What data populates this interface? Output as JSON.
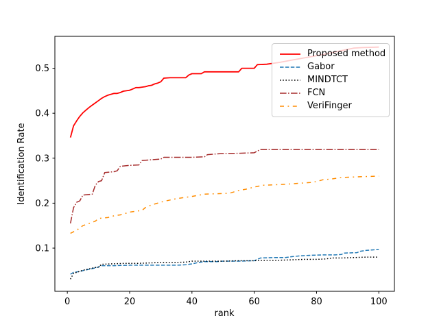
{
  "figure": {
    "background": "#ffffff"
  },
  "chart_data": {
    "type": "line",
    "title": "",
    "xlabel": "rank",
    "ylabel": "Identification Rate",
    "xlim": [
      -4,
      105
    ],
    "ylim": [
      0.004,
      0.571
    ],
    "xticks": [
      0,
      20,
      40,
      60,
      80,
      100
    ],
    "xtick_labels": [
      "0",
      "20",
      "40",
      "60",
      "80",
      "100"
    ],
    "yticks": [
      0.1,
      0.2,
      0.3,
      0.4,
      0.5
    ],
    "ytick_labels": [
      "0.1",
      "0.2",
      "0.3",
      "0.4",
      "0.5"
    ],
    "grid": false,
    "legend": {
      "position": "upper right",
      "frame": true,
      "framealpha": 0.8
    },
    "series": [
      {
        "name": "Proposed method",
        "color": "#ff0000",
        "linestyle": "solid",
        "linewidth": 1.8,
        "points": [
          [
            1,
            0.346
          ],
          [
            2,
            0.372
          ],
          [
            3,
            0.383
          ],
          [
            4,
            0.393
          ],
          [
            5,
            0.401
          ],
          [
            6,
            0.407
          ],
          [
            7,
            0.413
          ],
          [
            8,
            0.418
          ],
          [
            9,
            0.423
          ],
          [
            10,
            0.428
          ],
          [
            11,
            0.433
          ],
          [
            12,
            0.437
          ],
          [
            13,
            0.44
          ],
          [
            14,
            0.442
          ],
          [
            15,
            0.444
          ],
          [
            16,
            0.444
          ],
          [
            17,
            0.446
          ],
          [
            18,
            0.449
          ],
          [
            19,
            0.45
          ],
          [
            20,
            0.451
          ],
          [
            21,
            0.454
          ],
          [
            22,
            0.457
          ],
          [
            23,
            0.457
          ],
          [
            24,
            0.458
          ],
          [
            25,
            0.459
          ],
          [
            26,
            0.461
          ],
          [
            27,
            0.462
          ],
          [
            28,
            0.465
          ],
          [
            29,
            0.467
          ],
          [
            30,
            0.47
          ],
          [
            31,
            0.478
          ],
          [
            33,
            0.479
          ],
          [
            38,
            0.479
          ],
          [
            39,
            0.485
          ],
          [
            40,
            0.488
          ],
          [
            43,
            0.488
          ],
          [
            44,
            0.492
          ],
          [
            55,
            0.492
          ],
          [
            56,
            0.5
          ],
          [
            60,
            0.5
          ],
          [
            61,
            0.508
          ],
          [
            64,
            0.509
          ],
          [
            66,
            0.511
          ],
          [
            68,
            0.513
          ],
          [
            72,
            0.518
          ],
          [
            76,
            0.523
          ],
          [
            80,
            0.528
          ],
          [
            84,
            0.533
          ],
          [
            87,
            0.538
          ],
          [
            90,
            0.542
          ],
          [
            92,
            0.545
          ],
          [
            95,
            0.546
          ],
          [
            100,
            0.547
          ]
        ]
      },
      {
        "name": "Gabor",
        "color": "#1f77b4",
        "linestyle": "dashed",
        "linewidth": 1.5,
        "points": [
          [
            1,
            0.042
          ],
          [
            2,
            0.046
          ],
          [
            4,
            0.048
          ],
          [
            5,
            0.05
          ],
          [
            7,
            0.053
          ],
          [
            9,
            0.056
          ],
          [
            10,
            0.058
          ],
          [
            11,
            0.061
          ],
          [
            15,
            0.061
          ],
          [
            20,
            0.062
          ],
          [
            25,
            0.062
          ],
          [
            30,
            0.062
          ],
          [
            35,
            0.062
          ],
          [
            38,
            0.063
          ],
          [
            40,
            0.065
          ],
          [
            42,
            0.068
          ],
          [
            44,
            0.07
          ],
          [
            48,
            0.07
          ],
          [
            50,
            0.071
          ],
          [
            55,
            0.071
          ],
          [
            60,
            0.072
          ],
          [
            62,
            0.078
          ],
          [
            66,
            0.079
          ],
          [
            70,
            0.079
          ],
          [
            72,
            0.081
          ],
          [
            75,
            0.083
          ],
          [
            78,
            0.084
          ],
          [
            82,
            0.085
          ],
          [
            86,
            0.085
          ],
          [
            88,
            0.086
          ],
          [
            89,
            0.089
          ],
          [
            93,
            0.09
          ],
          [
            94,
            0.093
          ],
          [
            96,
            0.095
          ],
          [
            98,
            0.096
          ],
          [
            100,
            0.097
          ]
        ]
      },
      {
        "name": "MINDTCT",
        "color": "#000000",
        "linestyle": "dotted",
        "linewidth": 1.5,
        "points": [
          [
            1,
            0.031
          ],
          [
            2,
            0.044
          ],
          [
            3,
            0.046
          ],
          [
            5,
            0.051
          ],
          [
            7,
            0.054
          ],
          [
            9,
            0.057
          ],
          [
            10,
            0.058
          ],
          [
            11,
            0.064
          ],
          [
            14,
            0.065
          ],
          [
            18,
            0.066
          ],
          [
            22,
            0.066
          ],
          [
            26,
            0.067
          ],
          [
            30,
            0.068
          ],
          [
            34,
            0.068
          ],
          [
            38,
            0.069
          ],
          [
            40,
            0.071
          ],
          [
            45,
            0.071
          ],
          [
            50,
            0.071
          ],
          [
            55,
            0.072
          ],
          [
            60,
            0.072
          ],
          [
            63,
            0.073
          ],
          [
            68,
            0.073
          ],
          [
            72,
            0.074
          ],
          [
            76,
            0.075
          ],
          [
            80,
            0.075
          ],
          [
            83,
            0.076
          ],
          [
            85,
            0.078
          ],
          [
            88,
            0.078
          ],
          [
            92,
            0.079
          ],
          [
            96,
            0.08
          ],
          [
            100,
            0.08
          ]
        ]
      },
      {
        "name": "FCN",
        "color": "#a52a2a",
        "linestyle": "dashdot",
        "linewidth": 1.5,
        "points": [
          [
            1,
            0.155
          ],
          [
            2,
            0.19
          ],
          [
            3,
            0.202
          ],
          [
            4,
            0.205
          ],
          [
            5,
            0.218
          ],
          [
            8,
            0.22
          ],
          [
            9,
            0.24
          ],
          [
            10,
            0.248
          ],
          [
            11,
            0.25
          ],
          [
            12,
            0.268
          ],
          [
            15,
            0.27
          ],
          [
            16,
            0.272
          ],
          [
            17,
            0.282
          ],
          [
            20,
            0.284
          ],
          [
            23,
            0.285
          ],
          [
            24,
            0.295
          ],
          [
            28,
            0.297
          ],
          [
            30,
            0.298
          ],
          [
            31,
            0.302
          ],
          [
            40,
            0.302
          ],
          [
            44,
            0.303
          ],
          [
            45,
            0.308
          ],
          [
            49,
            0.31
          ],
          [
            55,
            0.311
          ],
          [
            60,
            0.312
          ],
          [
            61,
            0.316
          ],
          [
            62,
            0.319
          ],
          [
            70,
            0.319
          ],
          [
            80,
            0.319
          ],
          [
            90,
            0.319
          ],
          [
            100,
            0.319
          ]
        ]
      },
      {
        "name": "VeriFinger",
        "color": "#ff8c00",
        "linestyle": "dashdotsparse",
        "linewidth": 1.5,
        "points": [
          [
            1,
            0.133
          ],
          [
            3,
            0.14
          ],
          [
            5,
            0.15
          ],
          [
            7,
            0.155
          ],
          [
            9,
            0.16
          ],
          [
            10,
            0.166
          ],
          [
            13,
            0.168
          ],
          [
            15,
            0.172
          ],
          [
            17,
            0.174
          ],
          [
            20,
            0.18
          ],
          [
            22,
            0.182
          ],
          [
            24,
            0.184
          ],
          [
            25,
            0.19
          ],
          [
            27,
            0.196
          ],
          [
            29,
            0.2
          ],
          [
            31,
            0.204
          ],
          [
            33,
            0.207
          ],
          [
            35,
            0.21
          ],
          [
            38,
            0.213
          ],
          [
            40,
            0.215
          ],
          [
            44,
            0.22
          ],
          [
            48,
            0.221
          ],
          [
            52,
            0.222
          ],
          [
            55,
            0.228
          ],
          [
            58,
            0.232
          ],
          [
            60,
            0.236
          ],
          [
            63,
            0.24
          ],
          [
            67,
            0.241
          ],
          [
            70,
            0.242
          ],
          [
            74,
            0.244
          ],
          [
            78,
            0.246
          ],
          [
            80,
            0.248
          ],
          [
            82,
            0.252
          ],
          [
            85,
            0.254
          ],
          [
            88,
            0.257
          ],
          [
            91,
            0.258
          ],
          [
            95,
            0.259
          ],
          [
            100,
            0.26
          ]
        ]
      }
    ]
  }
}
